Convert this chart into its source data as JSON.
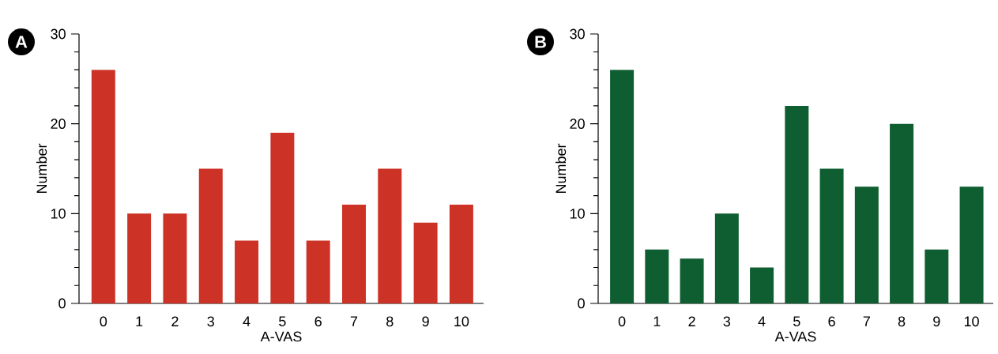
{
  "chart_data": [
    {
      "type": "bar",
      "title": "A",
      "xlabel": "A-VAS",
      "ylabel": "Number",
      "color": "#cc3326",
      "categories": [
        "0",
        "1",
        "2",
        "3",
        "4",
        "5",
        "6",
        "7",
        "8",
        "9",
        "10"
      ],
      "values": [
        26,
        10,
        10,
        15,
        7,
        19,
        7,
        11,
        15,
        9,
        11
      ],
      "ylim": [
        0,
        30
      ],
      "yticks": [
        0,
        {
          "value": 2,
          "label": null
        },
        {
          "value": 4,
          "label": null
        },
        {
          "value": 6,
          "label": null
        },
        {
          "value": 8,
          "label": null
        },
        10,
        {
          "value": 12,
          "label": null
        },
        {
          "value": 14,
          "label": null
        },
        {
          "value": 16,
          "label": null
        },
        {
          "value": 18,
          "label": null
        },
        20,
        {
          "value": 22,
          "label": null
        },
        {
          "value": 24,
          "label": null
        },
        {
          "value": 26,
          "label": null
        },
        {
          "value": 28,
          "label": null
        },
        30
      ]
    },
    {
      "type": "bar",
      "title": "B",
      "xlabel": "A-VAS",
      "ylabel": "Number",
      "color": "#0e5e31",
      "categories": [
        "0",
        "1",
        "2",
        "3",
        "4",
        "5",
        "6",
        "7",
        "8",
        "9",
        "10"
      ],
      "values": [
        26,
        6,
        5,
        10,
        4,
        22,
        15,
        13,
        20,
        6,
        13
      ],
      "ylim": [
        0,
        30
      ],
      "yticks": [
        0,
        {
          "value": 2,
          "label": null
        },
        {
          "value": 4,
          "label": null
        },
        {
          "value": 6,
          "label": null
        },
        {
          "value": 8,
          "label": null
        },
        10,
        {
          "value": 12,
          "label": null
        },
        {
          "value": 14,
          "label": null
        },
        {
          "value": 16,
          "label": null
        },
        {
          "value": 18,
          "label": null
        },
        20,
        {
          "value": 22,
          "label": null
        },
        {
          "value": 24,
          "label": null
        },
        {
          "value": 26,
          "label": null
        },
        {
          "value": 28,
          "label": null
        },
        30
      ]
    }
  ]
}
